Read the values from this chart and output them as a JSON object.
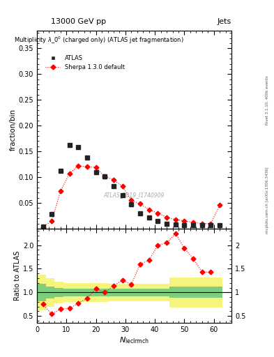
{
  "title_top": "13000 GeV pp",
  "title_right": "Jets",
  "main_title": "Multiplicity $\\lambda\\_0^0$ (charged only) (ATLAS jet fragmentation)",
  "ylabel_main": "fraction/bin",
  "ylabel_ratio": "Ratio to ATLAS",
  "xlabel": "$N_{\\mathrm{leclrm{ch}}}$",
  "rivet_label": "Rivet 3.1.10, 400k events",
  "arxiv_label": "mcplots.cern.ch [arXiv:1306.3436]",
  "watermark": "ATLAS_2019_I1740909",
  "ylim_main": [
    0,
    0.385
  ],
  "ylim_ratio": [
    0.35,
    2.35
  ],
  "yticks_main": [
    0.05,
    0.1,
    0.15,
    0.2,
    0.25,
    0.3,
    0.35
  ],
  "yticks_ratio": [
    0.5,
    1.0,
    1.5,
    2.0
  ],
  "atlas_x": [
    2,
    5,
    8,
    11,
    14,
    17,
    20,
    23,
    26,
    29,
    32,
    35,
    38,
    41,
    44,
    47,
    50,
    53,
    56,
    59,
    62
  ],
  "atlas_y": [
    0.004,
    0.028,
    0.112,
    0.163,
    0.158,
    0.138,
    0.11,
    0.101,
    0.083,
    0.065,
    0.047,
    0.03,
    0.022,
    0.015,
    0.01,
    0.008,
    0.007,
    0.007,
    0.007,
    0.007,
    0.006
  ],
  "sherpa_x": [
    2,
    5,
    8,
    11,
    14,
    17,
    20,
    23,
    26,
    29,
    32,
    35,
    38,
    41,
    44,
    47,
    50,
    53,
    56,
    59,
    62
  ],
  "sherpa_y": [
    0.003,
    0.015,
    0.073,
    0.107,
    0.122,
    0.12,
    0.119,
    0.101,
    0.095,
    0.082,
    0.055,
    0.048,
    0.037,
    0.03,
    0.022,
    0.018,
    0.015,
    0.012,
    0.01,
    0.01,
    0.046
  ],
  "ratio_x": [
    2,
    5,
    8,
    11,
    14,
    17,
    20,
    23,
    26,
    29,
    32,
    35,
    38,
    41,
    44,
    47,
    50,
    53,
    56,
    59
  ],
  "ratio_y": [
    0.75,
    0.54,
    0.65,
    0.66,
    0.77,
    0.87,
    1.08,
    1.0,
    1.14,
    1.26,
    1.17,
    1.6,
    1.68,
    2.0,
    2.05,
    2.25,
    1.93,
    1.72,
    1.43,
    1.43
  ],
  "yellow_band_edges": [
    0,
    3,
    6,
    9,
    12,
    15,
    18,
    21,
    24,
    27,
    30,
    33,
    36,
    39,
    42,
    45,
    48,
    51,
    54,
    57,
    60,
    63
  ],
  "yellow_band_ylo": [
    0.62,
    0.7,
    0.77,
    0.8,
    0.8,
    0.8,
    0.8,
    0.8,
    0.82,
    0.82,
    0.82,
    0.82,
    0.82,
    0.82,
    0.82,
    0.68,
    0.68,
    0.68,
    0.68,
    0.68,
    0.68,
    0.68
  ],
  "yellow_band_yhi": [
    1.38,
    1.3,
    1.23,
    1.2,
    1.2,
    1.2,
    1.2,
    1.2,
    1.18,
    1.18,
    1.18,
    1.18,
    1.18,
    1.18,
    1.18,
    1.32,
    1.32,
    1.32,
    1.32,
    1.32,
    1.32,
    1.32
  ],
  "green_band_edges": [
    0,
    3,
    6,
    9,
    12,
    15,
    18,
    21,
    24,
    27,
    30,
    33,
    36,
    39,
    42,
    45,
    48,
    51,
    54,
    57,
    60,
    63
  ],
  "green_band_ylo": [
    0.82,
    0.87,
    0.9,
    0.92,
    0.92,
    0.92,
    0.92,
    0.92,
    0.92,
    0.92,
    0.92,
    0.92,
    0.92,
    0.92,
    0.92,
    0.88,
    0.88,
    0.88,
    0.88,
    0.88,
    0.88,
    0.88
  ],
  "green_band_yhi": [
    1.18,
    1.13,
    1.1,
    1.08,
    1.08,
    1.08,
    1.08,
    1.08,
    1.08,
    1.08,
    1.08,
    1.08,
    1.08,
    1.08,
    1.08,
    1.12,
    1.12,
    1.12,
    1.12,
    1.12,
    1.12,
    1.12
  ],
  "color_atlas": "#222222",
  "color_sherpa": "red",
  "color_green": "#7dce7d",
  "color_yellow": "#f5f57d",
  "legend_atlas": "ATLAS",
  "legend_sherpa": "Sherpa 1.3.0 default"
}
